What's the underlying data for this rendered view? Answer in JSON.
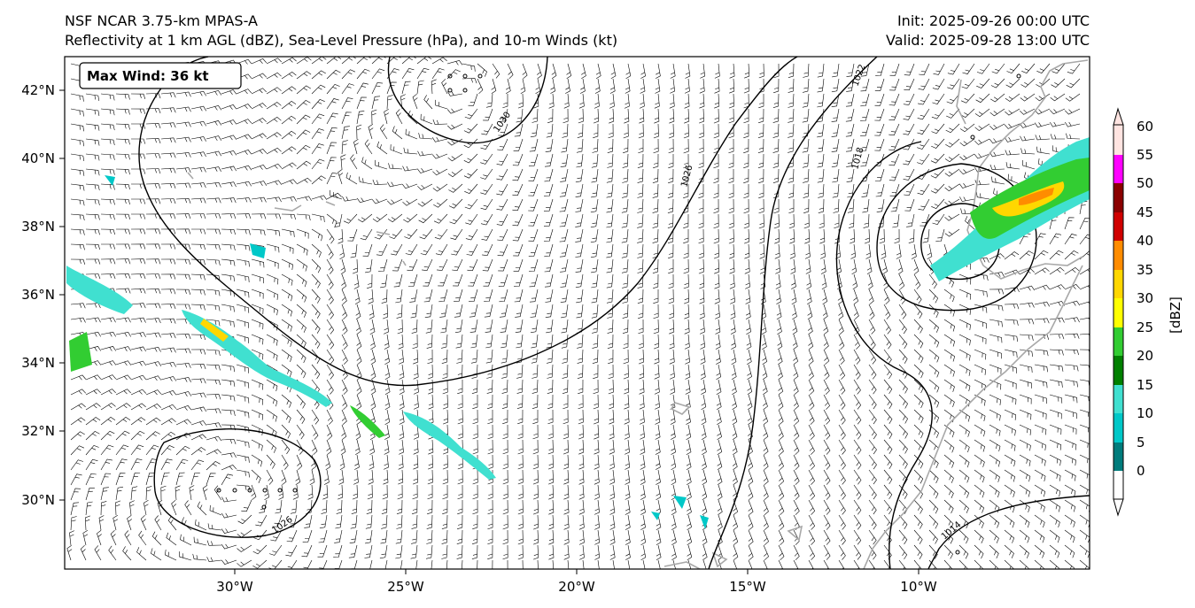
{
  "title": {
    "line1": "NSF NCAR 3.75-km MPAS-A",
    "line2": "Reflectivity at 1 km AGL (dBZ), Sea-Level Pressure (hPa), and 10-m Winds (kt)",
    "init": "Init: 2025-09-26 00:00 UTC",
    "valid": "Valid: 2025-09-28 13:00 UTC"
  },
  "max_wind": "Max Wind: 36 kt",
  "axes": {
    "lat_labels": [
      "42°N",
      "40°N",
      "38°N",
      "36°N",
      "34°N",
      "32°N",
      "30°N"
    ],
    "lon_labels": [
      "30°W",
      "25°W",
      "20°W",
      "15°W",
      "10°W"
    ]
  },
  "isobar_labels": [
    "1030",
    "1026",
    "1022",
    "1018",
    "1026",
    "1014"
  ],
  "colorbar": {
    "unit": "[dBZ]",
    "ticks": [
      "0",
      "5",
      "10",
      "15",
      "20",
      "25",
      "30",
      "35",
      "40",
      "45",
      "50",
      "55",
      "60"
    ],
    "colors": [
      "#ffffff",
      "#007c7c",
      "#00c8c8",
      "#40e0d0",
      "#008000",
      "#32cd32",
      "#ffff00",
      "#ffd700",
      "#ff8c00",
      "#d00000",
      "#8b0000",
      "#ff00ff",
      "#ffe4e1"
    ]
  },
  "map": {
    "lon_range": [
      -35,
      -5
    ],
    "lat_range": [
      28,
      43
    ]
  }
}
